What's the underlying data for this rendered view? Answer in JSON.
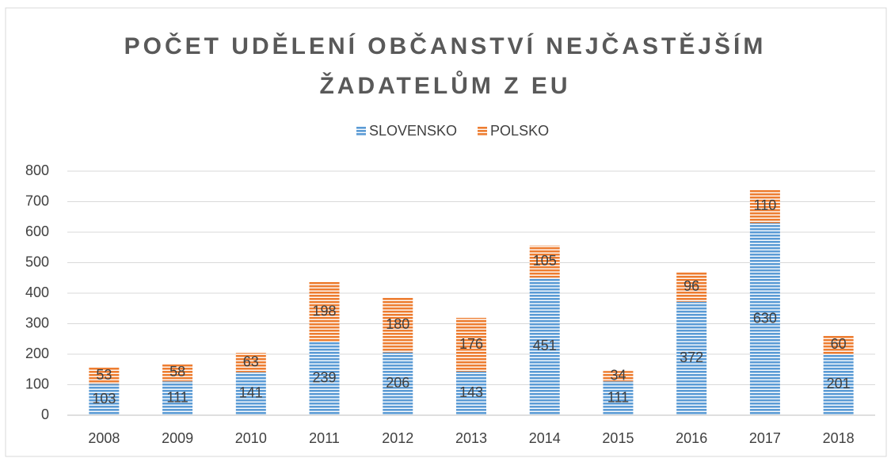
{
  "chart_data": {
    "type": "bar",
    "stacked": true,
    "title": "POČET UDĚLENÍ OBČANSTVÍ NEJČASTĚJŠÍM ŽADATELŮM Z EU",
    "categories": [
      "2008",
      "2009",
      "2010",
      "2011",
      "2012",
      "2013",
      "2014",
      "2015",
      "2016",
      "2017",
      "2018"
    ],
    "series": [
      {
        "name": "SLOVENSKO",
        "color": "#5b9bd5",
        "values": [
          103,
          111,
          141,
          239,
          206,
          143,
          451,
          111,
          372,
          630,
          201
        ]
      },
      {
        "name": "POLSKO",
        "color": "#ed7d31",
        "values": [
          53,
          58,
          63,
          198,
          180,
          176,
          105,
          34,
          96,
          110,
          60
        ]
      }
    ],
    "ylim": [
      0,
      800
    ],
    "yticks": [
      0,
      100,
      200,
      300,
      400,
      500,
      600,
      700,
      800
    ],
    "grid": true,
    "legend": "top"
  }
}
